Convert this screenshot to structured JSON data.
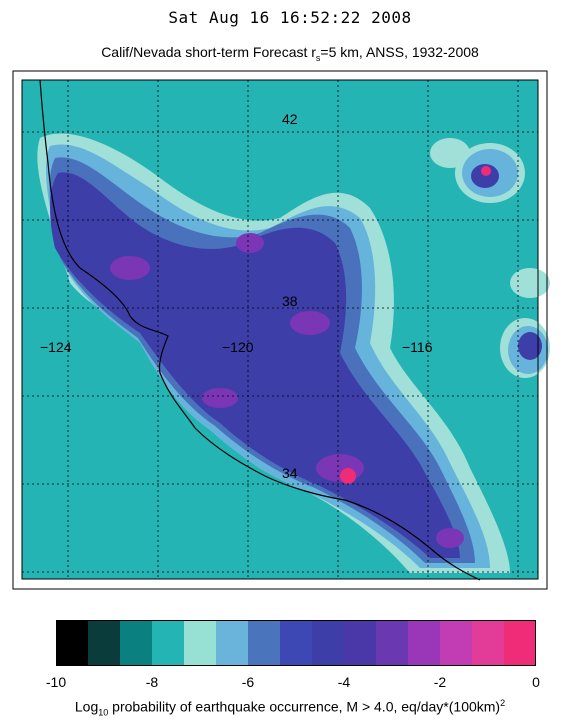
{
  "timestamp": "Sat Aug 16 16:52:22 2008",
  "subtitle": {
    "pre": "Calif/Nevada short-term Forecast r",
    "sub": "s",
    "post": "=5 km, ANSS, 1932-2008"
  },
  "map": {
    "latitude_labels": [
      "42",
      "38",
      "34"
    ],
    "longitude_labels": [
      "−124",
      "−120",
      "−116"
    ],
    "colors": {
      "background": "#25b4b4",
      "light": "#a0e0d8",
      "sky": "#66b4dc",
      "mid_blue": "#4a72bc",
      "dark_blue": "#3e3ea8",
      "indigo": "#4a38a8",
      "purple": "#7a36b4",
      "magenta": "#d63aa6",
      "hot_pink": "#ee2c78"
    }
  },
  "colorbar": {
    "colors": [
      "#000000",
      "#0a3c3c",
      "#0a8080",
      "#25b4b4",
      "#96e0d4",
      "#6ab4dc",
      "#4a74bc",
      "#3e48b4",
      "#3e3ea8",
      "#4a38a8",
      "#6a38b0",
      "#9a36b8",
      "#c23cb4",
      "#e23c98",
      "#ee2c78"
    ],
    "ticks": [
      "-10",
      "-8",
      "-6",
      "-4",
      "-2",
      "0"
    ],
    "tick_values": [
      -10,
      -8,
      -6,
      -4,
      -2,
      0
    ],
    "range": [
      -10,
      0
    ],
    "label": {
      "pre": "Log",
      "sub": "10",
      "post": " probability of earthquake occurrence, M > 4.0, eq/day*(100km)",
      "sup": "2"
    }
  }
}
